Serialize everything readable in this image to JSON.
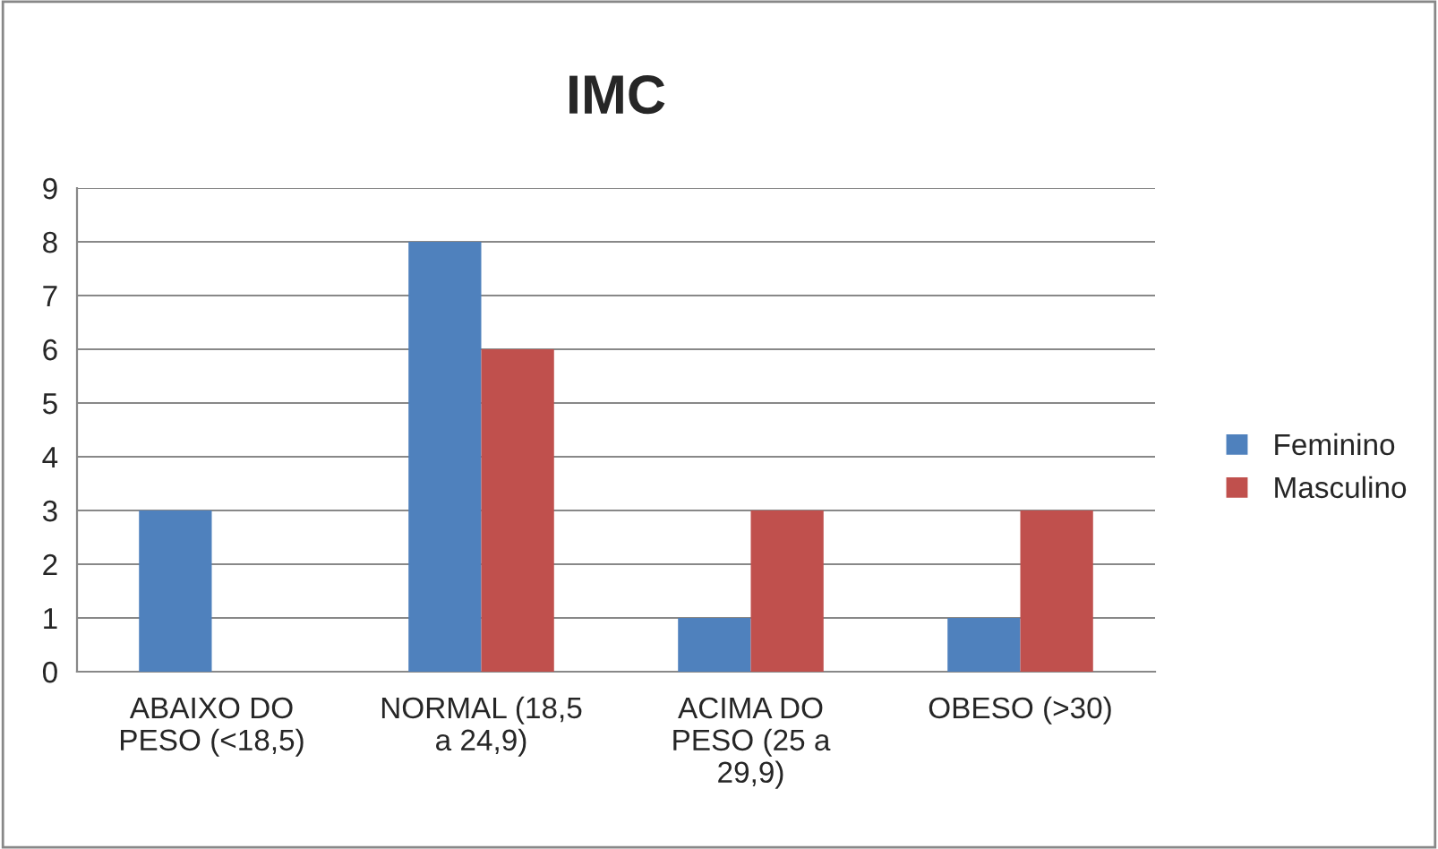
{
  "chart_data": {
    "type": "bar",
    "title": "IMC",
    "categories": [
      "ABAIXO DO\nPESO (<18,5)",
      "NORMAL (18,5\na 24,9)",
      "ACIMA DO\nPESO (25 a\n29,9)",
      "OBESO (>30)"
    ],
    "series": [
      {
        "name": "Feminino",
        "color": "#4f81bd",
        "values": [
          3,
          8,
          1,
          1
        ]
      },
      {
        "name": "Masculino",
        "color": "#c0504d",
        "values": [
          null,
          6,
          3,
          3
        ]
      }
    ],
    "ylim": [
      0,
      9
    ],
    "yticks": [
      0,
      1,
      2,
      3,
      4,
      5,
      6,
      7,
      8,
      9
    ],
    "grid": "y",
    "legend": "right"
  }
}
